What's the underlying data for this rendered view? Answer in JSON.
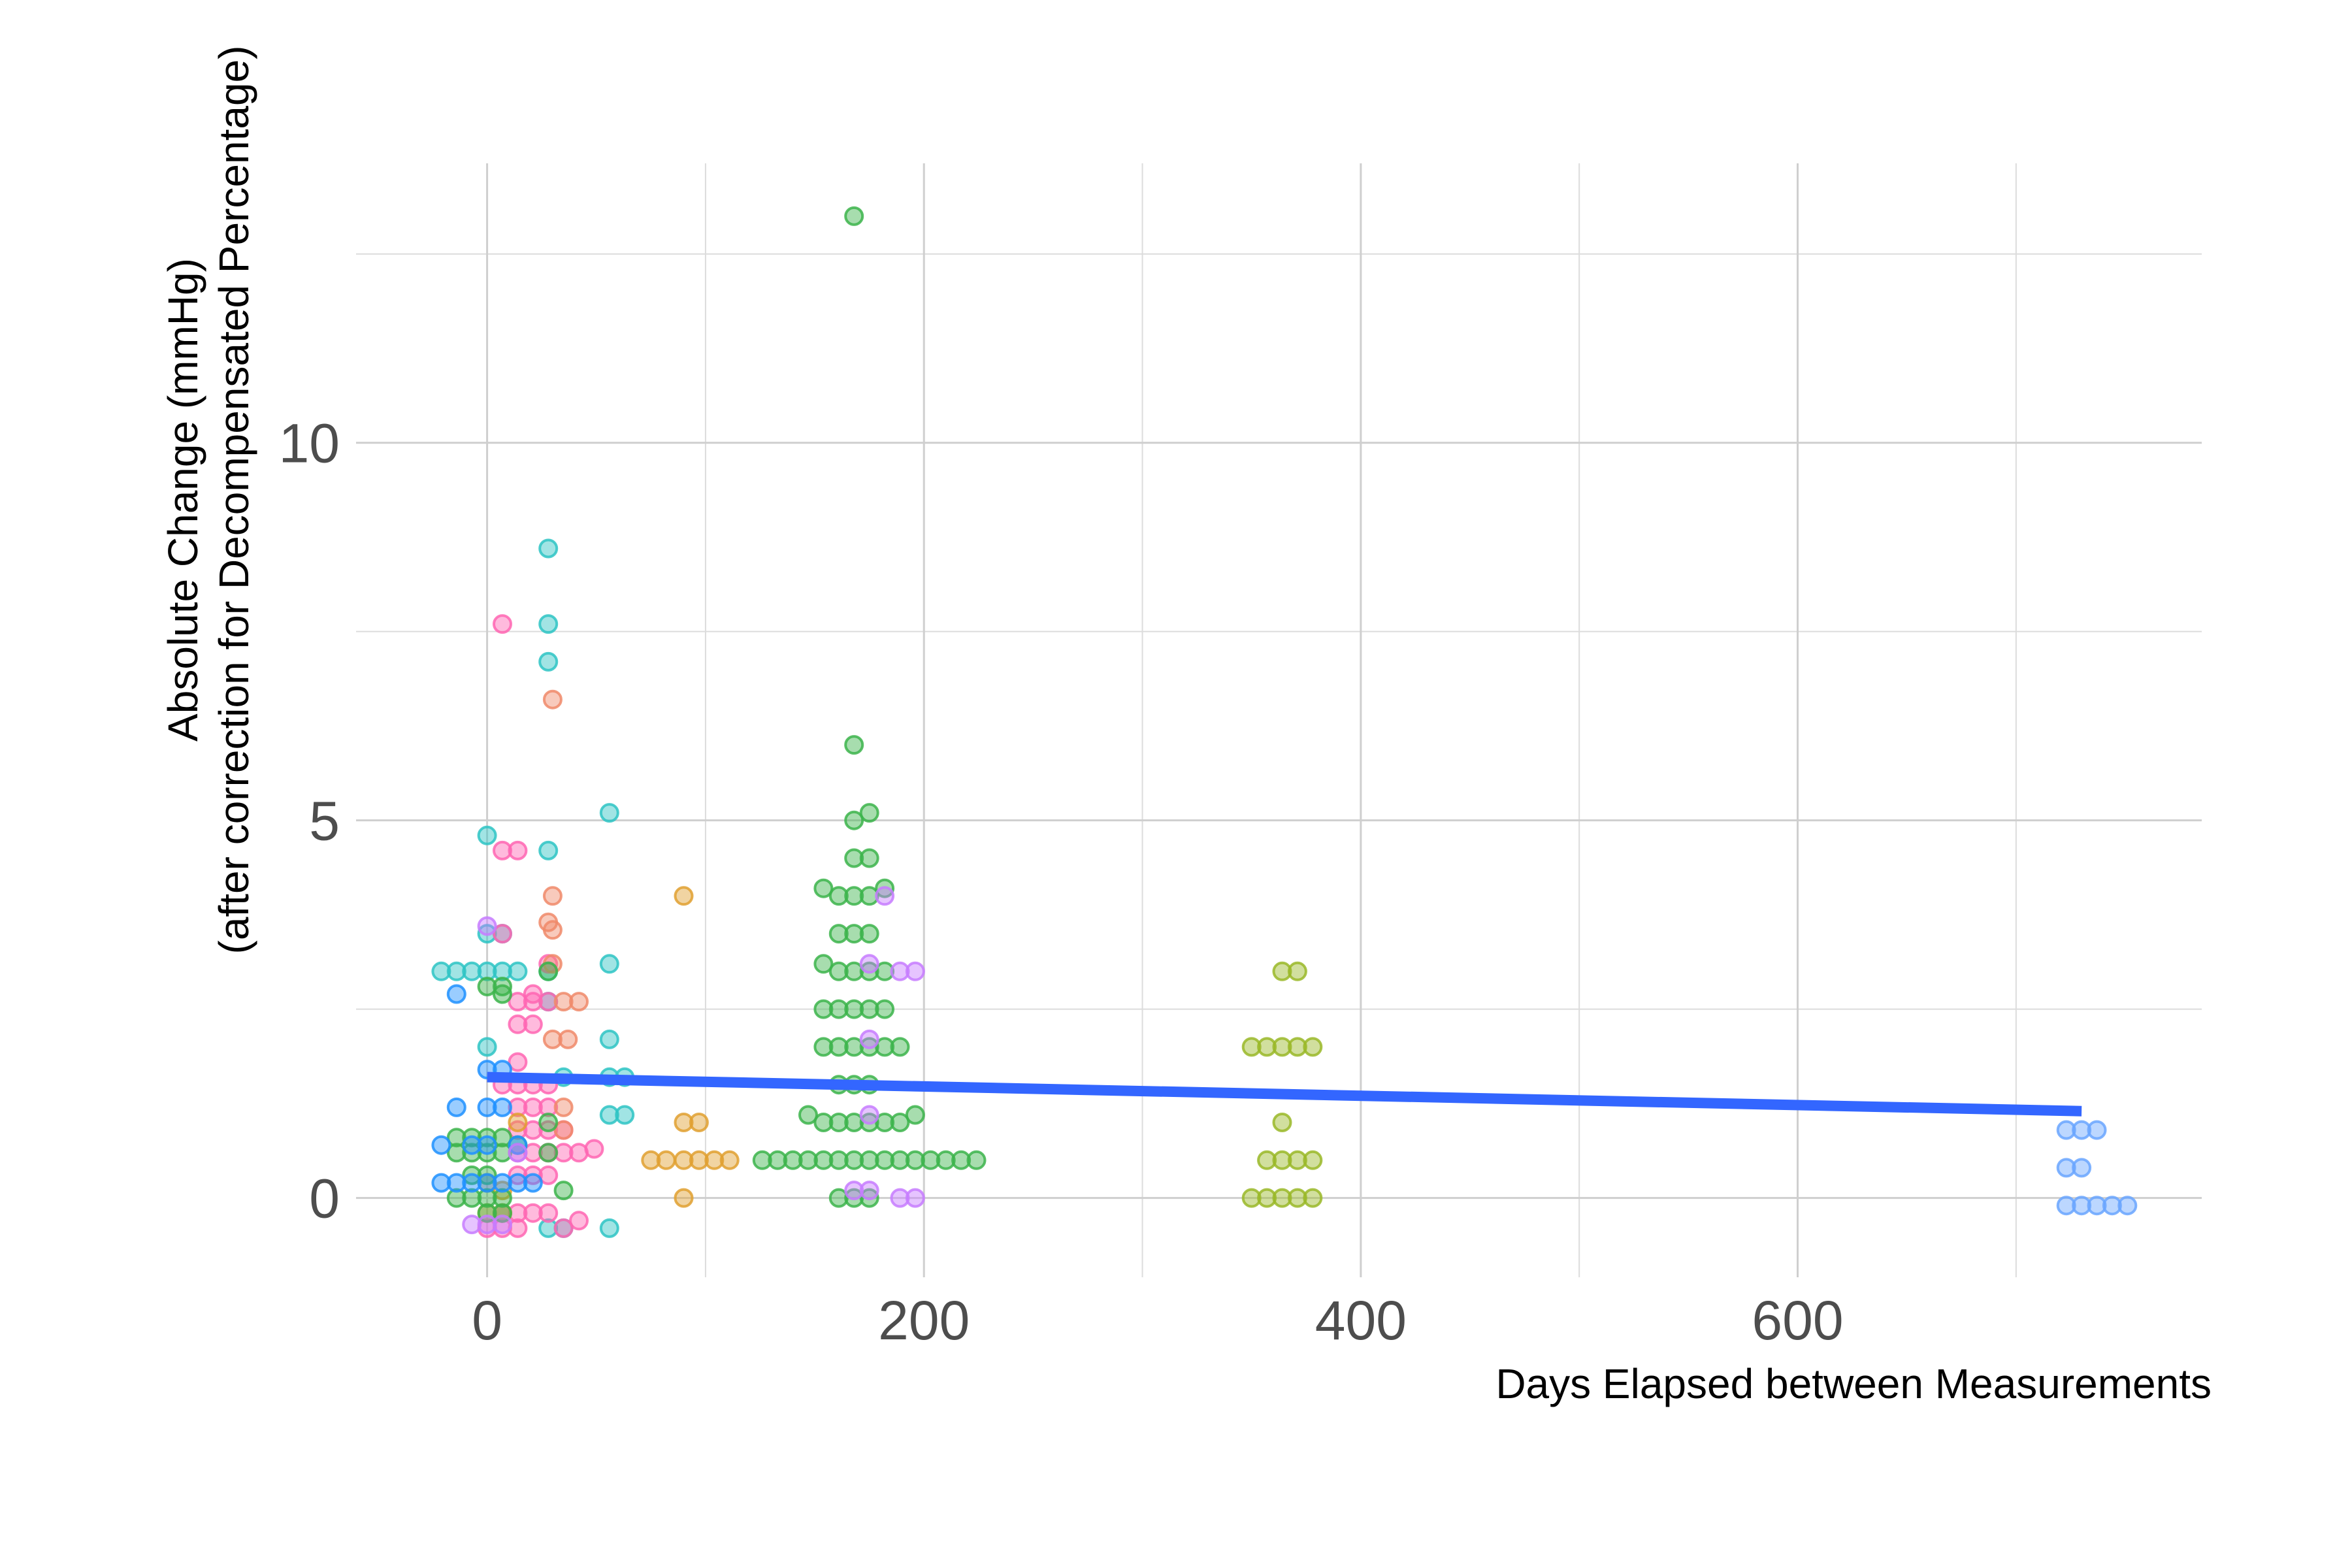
{
  "chart_data": {
    "type": "scatter",
    "title": "",
    "xlabel": "Days Elapsed between Measurements",
    "ylabel_lines": [
      "Absolute Change (mmHg)",
      "(after correction for Decompensated Percentage)"
    ],
    "xlim": [
      -60,
      785
    ],
    "ylim": [
      -1.05,
      13.7
    ],
    "x_ticks": [
      0,
      200,
      400,
      600
    ],
    "y_ticks": [
      0,
      5,
      10
    ],
    "x_minor_gridlines": [
      100,
      300,
      500,
      700
    ],
    "y_minor_gridlines": [
      2.5,
      7.5,
      12.5
    ],
    "grid": true,
    "legend": "none",
    "point_opacity": 0.45,
    "trend_line": {
      "color": "#3366ff",
      "points": [
        [
          0,
          1.6
        ],
        [
          730,
          1.15
        ]
      ]
    },
    "series": [
      {
        "color": "#2ec4c4",
        "points": [
          [
            28,
            8.6
          ],
          [
            28,
            7.6
          ],
          [
            28,
            7.1
          ],
          [
            28,
            4.6
          ],
          [
            0,
            4.8
          ],
          [
            56,
            5.1
          ],
          [
            56,
            3.1
          ],
          [
            56,
            2.1
          ],
          [
            56,
            1.6
          ],
          [
            63,
            1.6
          ],
          [
            56,
            1.1
          ],
          [
            63,
            1.1
          ],
          [
            56,
            -0.4
          ],
          [
            0,
            3.5
          ],
          [
            7,
            3.5
          ],
          [
            0,
            2.0
          ],
          [
            28,
            2.6
          ],
          [
            35,
            1.6
          ],
          [
            28,
            -0.4
          ],
          [
            35,
            -0.4
          ],
          [
            -21,
            3.0
          ],
          [
            -14,
            3.0
          ],
          [
            -7,
            3.0
          ],
          [
            0,
            3.0
          ],
          [
            7,
            3.0
          ],
          [
            14,
            3.0
          ],
          [
            28,
            3.0
          ]
        ]
      },
      {
        "color": "#ff66b3",
        "points": [
          [
            7,
            7.6
          ],
          [
            7,
            4.6
          ],
          [
            14,
            4.6
          ],
          [
            7,
            3.5
          ],
          [
            14,
            2.6
          ],
          [
            21,
            2.6
          ],
          [
            28,
            2.6
          ],
          [
            14,
            2.3
          ],
          [
            21,
            2.3
          ],
          [
            14,
            1.8
          ],
          [
            7,
            1.5
          ],
          [
            14,
            1.5
          ],
          [
            21,
            1.5
          ],
          [
            28,
            1.5
          ],
          [
            14,
            1.2
          ],
          [
            21,
            1.2
          ],
          [
            28,
            1.2
          ],
          [
            14,
            0.9
          ],
          [
            21,
            0.9
          ],
          [
            28,
            0.9
          ],
          [
            14,
            0.6
          ],
          [
            21,
            0.6
          ],
          [
            28,
            0.6
          ],
          [
            35,
            0.6
          ],
          [
            14,
            0.3
          ],
          [
            21,
            0.3
          ],
          [
            28,
            0.3
          ],
          [
            7,
            -0.2
          ],
          [
            14,
            -0.2
          ],
          [
            21,
            -0.2
          ],
          [
            28,
            -0.2
          ],
          [
            0,
            -0.4
          ],
          [
            7,
            -0.4
          ],
          [
            14,
            -0.4
          ],
          [
            35,
            -0.4
          ],
          [
            42,
            -0.3
          ],
          [
            35,
            0.9
          ],
          [
            42,
            0.6
          ],
          [
            49,
            0.65
          ],
          [
            28,
            3.1
          ],
          [
            21,
            2.7
          ]
        ]
      },
      {
        "color": "#f08a6a",
        "points": [
          [
            30,
            6.6
          ],
          [
            30,
            4.0
          ],
          [
            28,
            3.65
          ],
          [
            30,
            3.55
          ],
          [
            30,
            3.1
          ],
          [
            35,
            2.6
          ],
          [
            42,
            2.6
          ],
          [
            30,
            2.1
          ],
          [
            37,
            2.1
          ],
          [
            35,
            0.9
          ],
          [
            35,
            1.2
          ]
        ]
      },
      {
        "color": "#e0a030",
        "points": [
          [
            90,
            4.0
          ],
          [
            90,
            1.0
          ],
          [
            97,
            1.0
          ],
          [
            75,
            0.5
          ],
          [
            82,
            0.5
          ],
          [
            90,
            0.5
          ],
          [
            97,
            0.5
          ],
          [
            104,
            0.5
          ],
          [
            111,
            0.5
          ],
          [
            90,
            0.0
          ],
          [
            0,
            0.2
          ],
          [
            7,
            0.1
          ],
          [
            0,
            -0.2
          ],
          [
            7,
            -0.2
          ],
          [
            14,
            1.0
          ]
        ]
      },
      {
        "color": "#3cb44b",
        "points": [
          [
            168,
            13.0
          ],
          [
            168,
            6.0
          ],
          [
            168,
            5.0
          ],
          [
            175,
            5.1
          ],
          [
            168,
            4.5
          ],
          [
            175,
            4.5
          ],
          [
            154,
            4.1
          ],
          [
            161,
            4.0
          ],
          [
            168,
            4.0
          ],
          [
            175,
            4.0
          ],
          [
            182,
            4.1
          ],
          [
            161,
            3.5
          ],
          [
            168,
            3.5
          ],
          [
            175,
            3.5
          ],
          [
            154,
            3.1
          ],
          [
            161,
            3.0
          ],
          [
            168,
            3.0
          ],
          [
            175,
            3.0
          ],
          [
            182,
            3.0
          ],
          [
            154,
            2.5
          ],
          [
            161,
            2.5
          ],
          [
            168,
            2.5
          ],
          [
            175,
            2.5
          ],
          [
            182,
            2.5
          ],
          [
            154,
            2.0
          ],
          [
            161,
            2.0
          ],
          [
            168,
            2.0
          ],
          [
            175,
            2.0
          ],
          [
            182,
            2.0
          ],
          [
            189,
            2.0
          ],
          [
            161,
            1.5
          ],
          [
            168,
            1.5
          ],
          [
            175,
            1.5
          ],
          [
            147,
            1.1
          ],
          [
            154,
            1.0
          ],
          [
            161,
            1.0
          ],
          [
            168,
            1.0
          ],
          [
            175,
            1.0
          ],
          [
            182,
            1.0
          ],
          [
            189,
            1.0
          ],
          [
            196,
            1.1
          ],
          [
            126,
            0.5
          ],
          [
            133,
            0.5
          ],
          [
            140,
            0.5
          ],
          [
            147,
            0.5
          ],
          [
            154,
            0.5
          ],
          [
            161,
            0.5
          ],
          [
            168,
            0.5
          ],
          [
            175,
            0.5
          ],
          [
            182,
            0.5
          ],
          [
            189,
            0.5
          ],
          [
            196,
            0.5
          ],
          [
            203,
            0.5
          ],
          [
            210,
            0.5
          ],
          [
            217,
            0.5
          ],
          [
            224,
            0.5
          ],
          [
            161,
            0.0
          ],
          [
            168,
            0.0
          ],
          [
            175,
            0.0
          ],
          [
            0,
            2.8
          ],
          [
            7,
            2.8
          ],
          [
            0,
            0.8
          ],
          [
            7,
            0.8
          ],
          [
            -14,
            0.8
          ],
          [
            -7,
            0.8
          ],
          [
            0,
            0.6
          ],
          [
            7,
            0.6
          ],
          [
            -14,
            0.6
          ],
          [
            -7,
            0.6
          ],
          [
            0,
            0.3
          ],
          [
            -7,
            0.3
          ],
          [
            0,
            0.0
          ],
          [
            7,
            0.0
          ],
          [
            -14,
            0.0
          ],
          [
            -7,
            0.0
          ],
          [
            0,
            -0.2
          ],
          [
            7,
            -0.2
          ],
          [
            28,
            3.0
          ],
          [
            28,
            1.0
          ],
          [
            28,
            0.6
          ],
          [
            35,
            0.1
          ],
          [
            7,
            2.7
          ],
          [
            14,
            0.7
          ]
        ]
      },
      {
        "color": "#9ab828",
        "points": [
          [
            364,
            3.0
          ],
          [
            371,
            3.0
          ],
          [
            350,
            2.0
          ],
          [
            357,
            2.0
          ],
          [
            364,
            2.0
          ],
          [
            371,
            2.0
          ],
          [
            378,
            2.0
          ],
          [
            364,
            1.0
          ],
          [
            357,
            0.5
          ],
          [
            364,
            0.5
          ],
          [
            371,
            0.5
          ],
          [
            378,
            0.5
          ],
          [
            350,
            0.0
          ],
          [
            357,
            0.0
          ],
          [
            364,
            0.0
          ],
          [
            371,
            0.0
          ],
          [
            378,
            0.0
          ]
        ]
      },
      {
        "color": "#6aa6ff",
        "points": [
          [
            723,
            0.9
          ],
          [
            730,
            0.9
          ],
          [
            737,
            0.9
          ],
          [
            723,
            0.4
          ],
          [
            730,
            0.4
          ],
          [
            723,
            -0.1
          ],
          [
            730,
            -0.1
          ],
          [
            737,
            -0.1
          ],
          [
            744,
            -0.1
          ],
          [
            751,
            -0.1
          ]
        ]
      },
      {
        "color": "#1e90ff",
        "points": [
          [
            -14,
            2.7
          ],
          [
            0,
            1.7
          ],
          [
            7,
            1.7
          ],
          [
            -14,
            1.2
          ],
          [
            0,
            1.2
          ],
          [
            7,
            1.2
          ],
          [
            -21,
            0.7
          ],
          [
            -7,
            0.7
          ],
          [
            0,
            0.7
          ],
          [
            14,
            0.7
          ],
          [
            -21,
            0.2
          ],
          [
            -14,
            0.2
          ],
          [
            -7,
            0.2
          ],
          [
            0,
            0.2
          ],
          [
            7,
            0.2
          ],
          [
            14,
            0.2
          ],
          [
            21,
            0.2
          ]
        ]
      },
      {
        "color": "#c77cff",
        "points": [
          [
            0,
            3.6
          ],
          [
            -7,
            -0.35
          ],
          [
            0,
            -0.35
          ],
          [
            7,
            -0.35
          ],
          [
            14,
            0.6
          ],
          [
            189,
            3.0
          ],
          [
            196,
            3.0
          ],
          [
            182,
            4.0
          ],
          [
            175,
            3.1
          ],
          [
            175,
            2.1
          ],
          [
            175,
            1.1
          ],
          [
            168,
            0.1
          ],
          [
            175,
            0.1
          ],
          [
            189,
            0.0
          ],
          [
            196,
            0.0
          ]
        ]
      }
    ]
  }
}
